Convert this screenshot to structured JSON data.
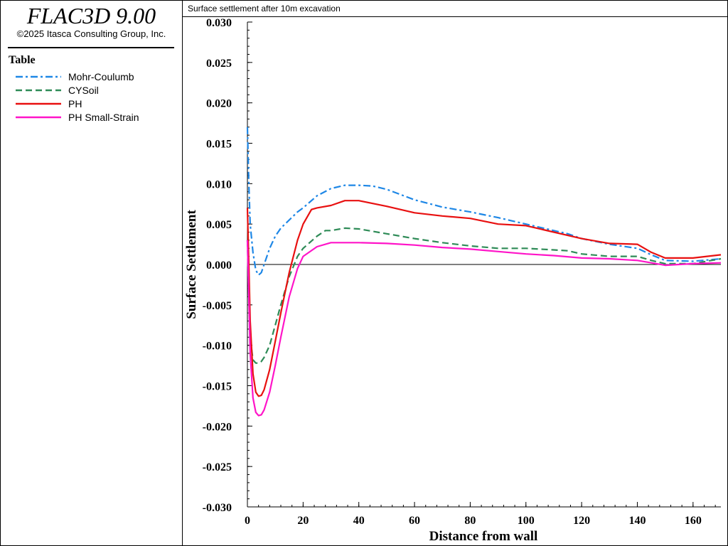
{
  "app": {
    "title": "FLAC3D 9.00",
    "copyright": "©2025 Itasca Consulting Group, Inc."
  },
  "legend": {
    "heading": "Table"
  },
  "chart_data": {
    "type": "line",
    "title": "Surface settlement after 10m excavation",
    "xlabel": "Distance from wall",
    "ylabel": "Surface Settlement",
    "xlim": [
      0,
      170
    ],
    "ylim": [
      -0.03,
      0.03
    ],
    "xticks": [
      0,
      20,
      40,
      60,
      80,
      100,
      120,
      140,
      160
    ],
    "yticks": [
      -0.03,
      -0.025,
      -0.02,
      -0.015,
      -0.01,
      -0.005,
      0.0,
      0.005,
      0.01,
      0.015,
      0.02,
      0.025,
      0.03
    ],
    "xtick_labels": [
      "0",
      "20",
      "40",
      "60",
      "80",
      "100",
      "120",
      "140",
      "160"
    ],
    "ytick_labels": [
      "-0.030",
      "-0.025",
      "-0.020",
      "-0.015",
      "-0.010",
      "-0.005",
      "0.000",
      "0.005",
      "0.010",
      "0.015",
      "0.020",
      "0.025",
      "0.030"
    ],
    "zero_line": true,
    "grid": false,
    "legend_position": "left-panel",
    "series": [
      {
        "name": "Mohr-Coulumb",
        "color": "#1e87e6",
        "dash": "dash-dot",
        "x": [
          0,
          0.5,
          1,
          2,
          3,
          4,
          5,
          6,
          8,
          10,
          12,
          15,
          18,
          20,
          25,
          30,
          35,
          40,
          45,
          50,
          60,
          70,
          80,
          90,
          100,
          110,
          115,
          120,
          130,
          140,
          145,
          150,
          160,
          170
        ],
        "y": [
          0.017,
          0.01,
          0.005,
          0.0015,
          -0.0007,
          -0.0013,
          -0.001,
          0.0,
          0.002,
          0.0035,
          0.0045,
          0.0055,
          0.0065,
          0.007,
          0.0085,
          0.0094,
          0.0098,
          0.0098,
          0.0097,
          0.0093,
          0.008,
          0.0071,
          0.0065,
          0.0058,
          0.005,
          0.0042,
          0.0038,
          0.0032,
          0.0025,
          0.002,
          0.0012,
          0.0005,
          0.0004,
          0.0007
        ]
      },
      {
        "name": "CYSoil",
        "color": "#2e8b57",
        "dash": "dash",
        "x": [
          0,
          0.5,
          1,
          2,
          3,
          4,
          5,
          6,
          8,
          10,
          12,
          15,
          18,
          20,
          25,
          28,
          30,
          35,
          40,
          50,
          60,
          70,
          80,
          90,
          100,
          110,
          115,
          120,
          130,
          140,
          145,
          150,
          160,
          170
        ],
        "y": [
          0.003,
          -0.004,
          -0.009,
          -0.0118,
          -0.0122,
          -0.0122,
          -0.012,
          -0.0115,
          -0.01,
          -0.0075,
          -0.005,
          -0.0015,
          0.001,
          0.002,
          0.0035,
          0.0042,
          0.0042,
          0.0045,
          0.0044,
          0.0038,
          0.0032,
          0.0027,
          0.0023,
          0.002,
          0.002,
          0.0018,
          0.0017,
          0.0013,
          0.001,
          0.001,
          0.0005,
          0.0001,
          0.0001,
          0.0007
        ]
      },
      {
        "name": "PH",
        "color": "#e81010",
        "dash": "solid",
        "x": [
          0,
          0.5,
          1,
          2,
          3,
          4,
          5,
          6,
          8,
          10,
          12,
          15,
          18,
          20,
          23,
          25,
          30,
          35,
          40,
          50,
          60,
          70,
          80,
          90,
          100,
          110,
          120,
          130,
          140,
          145,
          150,
          160,
          170
        ],
        "y": [
          0.007,
          0.0,
          -0.007,
          -0.0135,
          -0.0158,
          -0.0163,
          -0.0162,
          -0.0155,
          -0.013,
          -0.0095,
          -0.006,
          -0.001,
          0.003,
          0.005,
          0.0068,
          0.007,
          0.0073,
          0.0079,
          0.0079,
          0.0072,
          0.0064,
          0.006,
          0.0057,
          0.005,
          0.0048,
          0.004,
          0.0032,
          0.0026,
          0.0025,
          0.0015,
          0.0008,
          0.0008,
          0.0012
        ]
      },
      {
        "name": "PH Small-Strain",
        "color": "#ff14c8",
        "dash": "solid",
        "x": [
          0,
          0.5,
          1,
          2,
          3,
          4,
          5,
          6,
          8,
          10,
          12,
          15,
          18,
          20,
          25,
          30,
          35,
          40,
          50,
          60,
          70,
          80,
          90,
          100,
          110,
          120,
          130,
          140,
          145,
          150,
          160,
          170
        ],
        "y": [
          0.003,
          -0.004,
          -0.011,
          -0.0165,
          -0.0183,
          -0.0187,
          -0.0186,
          -0.018,
          -0.0158,
          -0.0125,
          -0.009,
          -0.004,
          -0.0005,
          0.001,
          0.0022,
          0.0027,
          0.0027,
          0.0027,
          0.0026,
          0.0024,
          0.0021,
          0.0019,
          0.0016,
          0.0013,
          0.0011,
          0.0008,
          0.0007,
          0.0005,
          0.0002,
          -0.0001,
          0.0001,
          0.0002
        ]
      }
    ]
  }
}
